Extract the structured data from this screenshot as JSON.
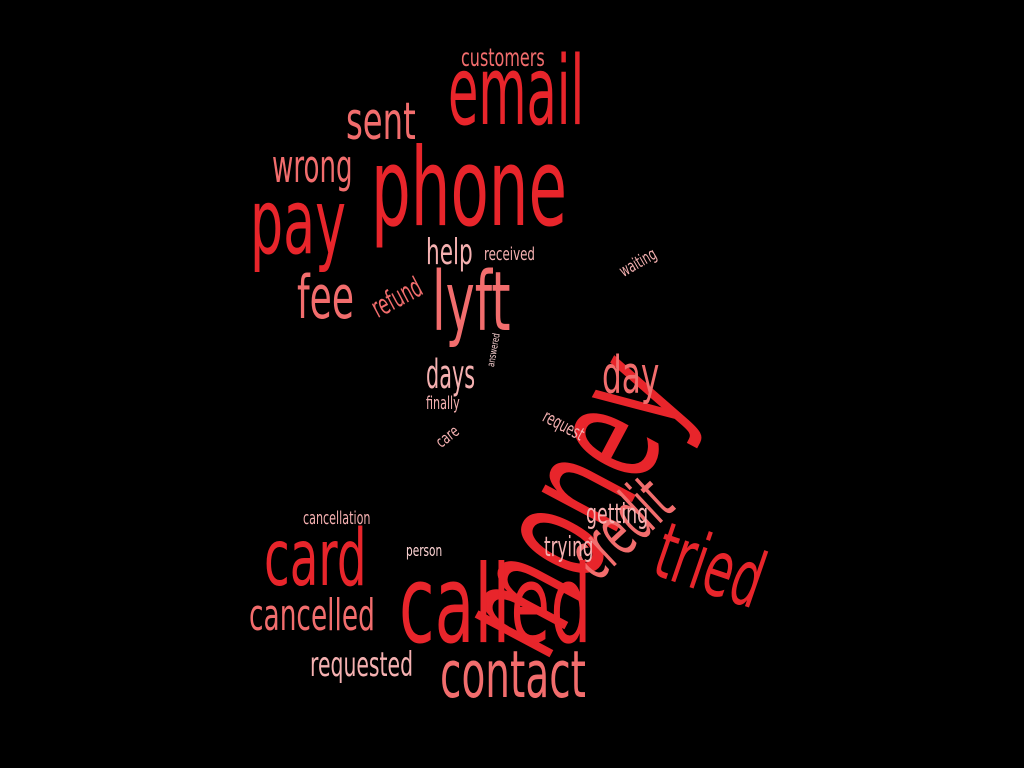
{
  "words": {
    "email": "email",
    "phone": "phone",
    "pay": "pay",
    "sent": "sent",
    "wrong": "wrong",
    "customers": "customers",
    "fee": "fee",
    "refund": "refund",
    "help": "help",
    "received": "received",
    "waiting": "waiting",
    "lyft": "lyft",
    "money": "money",
    "days": "days",
    "small_rotated": "answered",
    "day": "day",
    "request": "request",
    "finally": "finally",
    "care": "care",
    "credit": "credit",
    "cancellation": "cancellation",
    "getting": "getting",
    "card": "card",
    "person": "person",
    "trying": "trying",
    "tried": "tried",
    "called": "called",
    "cancelled": "cancelled",
    "requested": "requested",
    "contact": "contact"
  },
  "colors": {
    "background": "#000000",
    "primary_red": "#e8252b",
    "salmon": "#f26d6d",
    "light_pink": "#f5b1b1",
    "pale_pink": "#ffd5d5"
  }
}
